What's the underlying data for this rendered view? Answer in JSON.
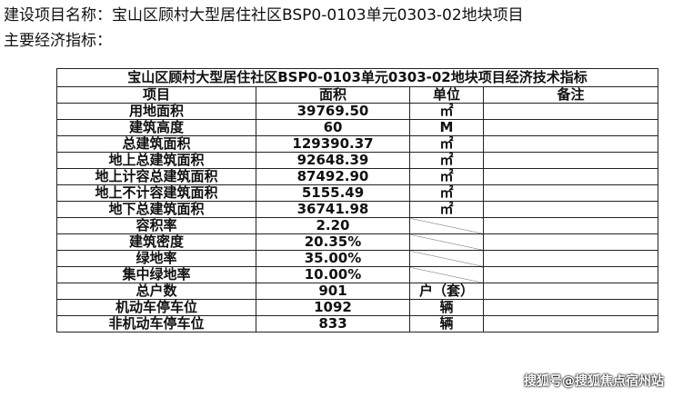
{
  "heading": {
    "project_name": "建设项目名称：宝山区顾村大型居住社区BSP0-0103单元0303-02地块项目",
    "indicators": "主要经济指标："
  },
  "table": {
    "title": "宝山区顾村大型居住社区BSP0-0103单元0303-02地块项目经济技术指标",
    "headers": [
      "项目",
      "面积",
      "单位",
      "备注"
    ],
    "rows": [
      {
        "item": "用地面积",
        "value": "39769.50",
        "unit": "㎡"
      },
      {
        "item": "建筑高度",
        "value": "60",
        "unit": "M"
      },
      {
        "item": "总建筑面积",
        "value": "129390.37",
        "unit": "㎡"
      },
      {
        "item": "地上总建筑面积",
        "value": "92648.39",
        "unit": "㎡"
      },
      {
        "item": "地上计容总建筑面积",
        "value": "87492.90",
        "unit": "㎡"
      },
      {
        "item": "地上不计容建筑面积",
        "value": "5155.49",
        "unit": "㎡"
      },
      {
        "item": "地下总建筑面积",
        "value": "36741.98",
        "unit": "㎡"
      },
      {
        "item": "容积率",
        "value": "2.20",
        "unit": ""
      },
      {
        "item": "建筑密度",
        "value": "20.35%",
        "unit": ""
      },
      {
        "item": "绿地率",
        "value": "35.00%",
        "unit": ""
      },
      {
        "item": "集中绿地率",
        "value": "10.00%",
        "unit": ""
      },
      {
        "item": "总户数",
        "value": "901",
        "unit": "户（套）"
      },
      {
        "item": "机动车停车位",
        "value": "1092",
        "unit": "辆"
      },
      {
        "item": "非机动车停车位",
        "value": "833",
        "unit": "辆"
      }
    ]
  },
  "watermark": "搜狐号@搜狐焦点宿州站"
}
